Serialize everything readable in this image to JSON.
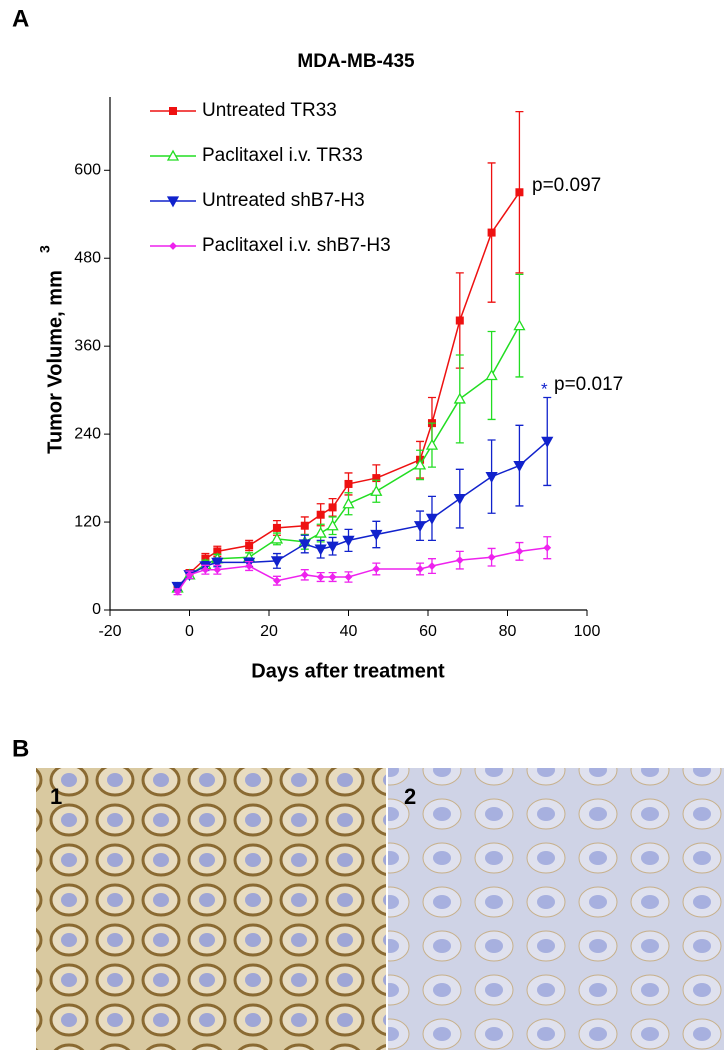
{
  "panels": {
    "a": "A",
    "b": "B",
    "image_1": "1",
    "image_2": "2"
  },
  "chart_data": {
    "type": "line",
    "title": "MDA-MB-435",
    "xlabel": "Days after treatment",
    "ylabel": "Tumor Volume, mm",
    "ylabel_superscript": "3",
    "x": [
      -3,
      0,
      4,
      7,
      15,
      22,
      29,
      33,
      36,
      40,
      47,
      58,
      61,
      68,
      76,
      83,
      90
    ],
    "xlim": [
      -20,
      100
    ],
    "xticks": [
      -20,
      0,
      20,
      40,
      60,
      80,
      100
    ],
    "ylim": [
      0,
      700
    ],
    "yticks": [
      0,
      120,
      240,
      360,
      480,
      600
    ],
    "legend": "upper left",
    "series": [
      {
        "name": "Untreated TR33",
        "color": "#ee1111",
        "marker": "square",
        "values": [
          30,
          50,
          70,
          80,
          88,
          112,
          115,
          130,
          140,
          172,
          180,
          205,
          255,
          395,
          515,
          570,
          null
        ],
        "errors": [
          5,
          5,
          7,
          7,
          7,
          10,
          12,
          15,
          12,
          15,
          18,
          25,
          35,
          65,
          95,
          110,
          null
        ]
      },
      {
        "name": "Paclitaxel i.v. TR33",
        "color": "#22dd22",
        "marker": "triangle-up",
        "values": [
          30,
          48,
          62,
          70,
          72,
          97,
          93,
          105,
          115,
          145,
          162,
          198,
          225,
          288,
          320,
          388,
          null
        ],
        "errors": [
          5,
          5,
          6,
          6,
          6,
          8,
          10,
          12,
          12,
          15,
          15,
          20,
          30,
          60,
          60,
          70,
          null
        ]
      },
      {
        "name": "Untreated shB7-H3",
        "color": "#1122cc",
        "marker": "triangle-down",
        "values": [
          32,
          48,
          60,
          65,
          65,
          67,
          90,
          83,
          87,
          95,
          103,
          115,
          125,
          152,
          182,
          197,
          230
        ],
        "errors": [
          5,
          5,
          6,
          6,
          6,
          10,
          12,
          12,
          12,
          15,
          18,
          20,
          30,
          40,
          50,
          55,
          60
        ]
      },
      {
        "name": "Paclitaxel i.v. shB7-H3",
        "color": "#ee22ee",
        "marker": "diamond",
        "values": [
          25,
          48,
          55,
          55,
          60,
          40,
          48,
          45,
          45,
          45,
          56,
          56,
          60,
          68,
          72,
          80,
          85
        ],
        "errors": [
          4,
          5,
          6,
          6,
          6,
          6,
          7,
          6,
          6,
          7,
          8,
          8,
          10,
          12,
          12,
          12,
          15
        ]
      }
    ],
    "annotations": [
      "p=0.097",
      "*",
      "p=0.017"
    ]
  }
}
